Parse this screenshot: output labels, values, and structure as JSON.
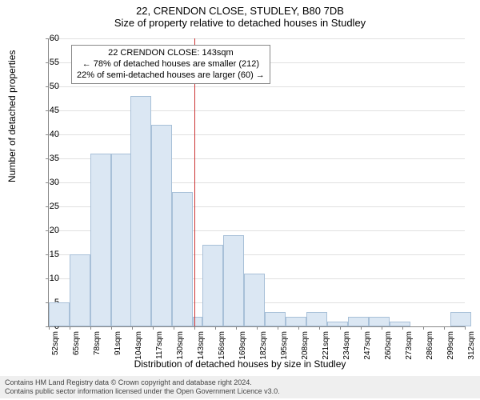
{
  "title1": "22, CRENDON CLOSE, STUDLEY, B80 7DB",
  "title2": "Size of property relative to detached houses in Studley",
  "ylabel": "Number of detached properties",
  "xlabel": "Distribution of detached houses by size in Studley",
  "annotation": {
    "line1": "22 CRENDON CLOSE: 143sqm",
    "line2": "← 78% of detached houses are smaller (212)",
    "line3": "22% of semi-detached houses are larger (60) →"
  },
  "footer": {
    "line1": "Contains HM Land Registry data © Crown copyright and database right 2024.",
    "line2": "Contains public sector information licensed under the Open Government Licence v3.0."
  },
  "chart": {
    "type": "histogram",
    "ylim": [
      0,
      60
    ],
    "ytick_step": 5,
    "xtick_start": 52,
    "xtick_step": 13,
    "xtick_count": 21,
    "xtick_unit": "sqm",
    "reference_x": 143,
    "reference_color": "#cc3333",
    "bar_fill": "#dbe7f3",
    "bar_border": "#a8c0d8",
    "grid_color": "#e0e0e0",
    "background": "#ffffff",
    "bars": [
      {
        "x": 52,
        "v": 5
      },
      {
        "x": 65,
        "v": 15
      },
      {
        "x": 78,
        "v": 36
      },
      {
        "x": 91,
        "v": 36
      },
      {
        "x": 103,
        "v": 48
      },
      {
        "x": 116,
        "v": 42
      },
      {
        "x": 129,
        "v": 28
      },
      {
        "x": 142,
        "v": 2
      },
      {
        "x": 148,
        "v": 17
      },
      {
        "x": 161,
        "v": 19
      },
      {
        "x": 174,
        "v": 11
      },
      {
        "x": 187,
        "v": 3
      },
      {
        "x": 200,
        "v": 2
      },
      {
        "x": 213,
        "v": 3
      },
      {
        "x": 226,
        "v": 1
      },
      {
        "x": 239,
        "v": 2
      },
      {
        "x": 252,
        "v": 2
      },
      {
        "x": 265,
        "v": 1
      },
      {
        "x": 303,
        "v": 3
      }
    ]
  }
}
